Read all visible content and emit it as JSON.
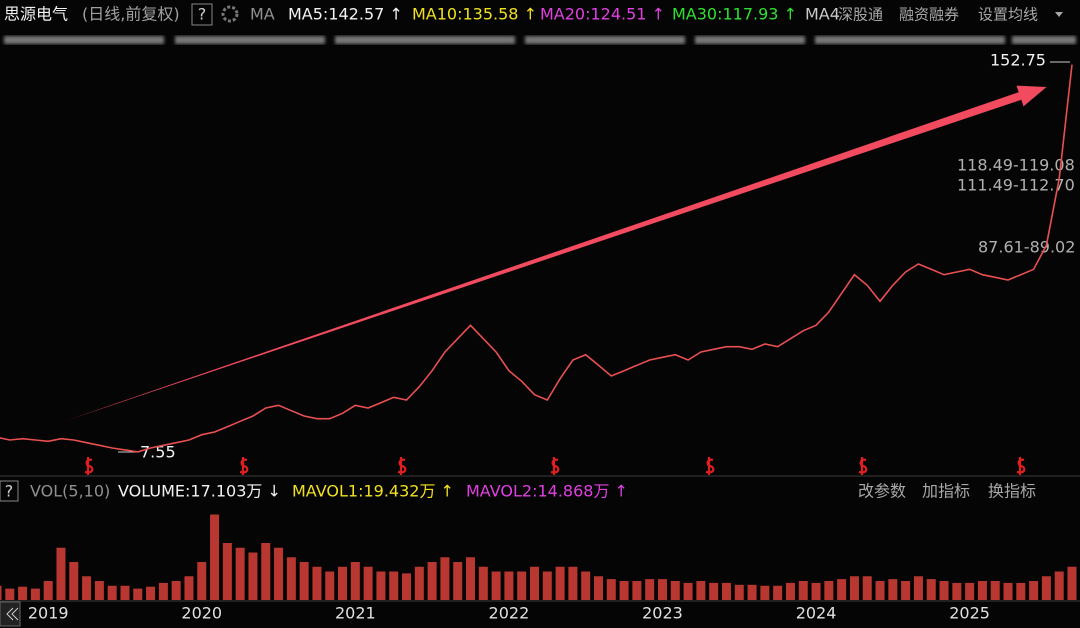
{
  "header": {
    "stock": "思源电气",
    "mode": "(日线,前复权)",
    "help": "?",
    "ma_label": "MA",
    "ma": [
      {
        "text": "MA5:142.57 ↑",
        "color": "#f2f2f2"
      },
      {
        "text": "MA10:135.58 ↑",
        "color": "#f0e020"
      },
      {
        "text": "MA20:124.51 ↑",
        "color": "#e040e0"
      },
      {
        "text": "MA30:117.93 ↑",
        "color": "#30e030"
      },
      {
        "text": "MA4",
        "color": "#c8c8c8"
      }
    ],
    "menu": [
      "深股通",
      "融资融券",
      "设置均线"
    ]
  },
  "annotations": {
    "high": "152.75",
    "low": "7.55",
    "ranges": [
      "118.49-119.08",
      "111.49-112.70",
      "87.61-89.02"
    ]
  },
  "volume_header": {
    "help": "?",
    "name": "VOL(5,10)",
    "items": [
      {
        "text": "VOLUME:17.103万 ↓",
        "color": "#f2f2f2"
      },
      {
        "text": "MAVOL1:19.432万 ↑",
        "color": "#f0e020"
      },
      {
        "text": "MAVOL2:14.868万 ↑",
        "color": "#e040e0"
      }
    ],
    "buttons": [
      "改参数",
      "加指标",
      "换指标"
    ]
  },
  "chart_data": [
    {
      "type": "line",
      "categories": [
        null,
        null,
        null,
        null,
        "2019",
        null,
        null,
        null,
        null,
        null,
        null,
        null,
        null,
        null,
        null,
        null,
        "2020",
        null,
        null,
        null,
        null,
        null,
        null,
        null,
        null,
        null,
        null,
        null,
        "2021",
        null,
        null,
        null,
        null,
        null,
        null,
        null,
        null,
        null,
        null,
        null,
        "2022",
        null,
        null,
        null,
        null,
        null,
        null,
        null,
        null,
        null,
        null,
        null,
        "2023",
        null,
        null,
        null,
        null,
        null,
        null,
        null,
        null,
        null,
        null,
        null,
        "2024",
        null,
        null,
        null,
        null,
        null,
        null,
        null,
        null,
        null,
        null,
        null,
        "2025",
        null,
        null,
        null,
        null,
        null,
        null,
        null,
        null
      ],
      "series": [
        {
          "name": "思源电气",
          "color": "#e85050",
          "values": [
            13,
            12,
            12.5,
            12,
            11.5,
            12.5,
            12,
            11,
            10,
            9,
            8.3,
            7.55,
            9,
            10,
            11,
            12,
            14,
            15,
            17,
            19,
            21,
            24,
            25,
            23,
            21,
            20,
            20,
            22,
            25,
            24,
            26,
            28,
            27,
            32,
            38,
            45,
            50,
            55,
            50,
            45,
            38,
            34,
            29,
            27,
            35,
            42,
            44,
            40,
            36,
            38,
            40,
            42,
            43,
            44,
            42,
            45,
            46,
            47,
            47,
            46,
            48,
            47,
            50,
            53,
            55,
            60,
            67,
            74,
            70,
            64,
            70,
            75,
            78,
            76,
            74,
            75,
            76,
            74,
            73,
            72,
            74,
            76,
            85,
            110,
            152.75
          ]
        }
      ],
      "ylim": [
        0,
        162
      ]
    },
    {
      "type": "bar",
      "color": "#d9413a",
      "values": [
        15,
        12,
        14,
        12,
        20,
        55,
        40,
        25,
        20,
        15,
        15,
        12,
        14,
        18,
        20,
        25,
        40,
        90,
        60,
        55,
        50,
        60,
        55,
        45,
        40,
        35,
        30,
        35,
        40,
        35,
        30,
        30,
        28,
        35,
        40,
        45,
        40,
        45,
        35,
        30,
        30,
        30,
        35,
        30,
        35,
        35,
        30,
        25,
        22,
        20,
        20,
        22,
        22,
        20,
        18,
        20,
        18,
        18,
        16,
        16,
        15,
        15,
        18,
        20,
        18,
        20,
        22,
        25,
        25,
        20,
        22,
        20,
        25,
        22,
        20,
        18,
        18,
        20,
        20,
        18,
        18,
        20,
        25,
        30,
        35
      ],
      "ylim": [
        0,
        100
      ]
    }
  ]
}
